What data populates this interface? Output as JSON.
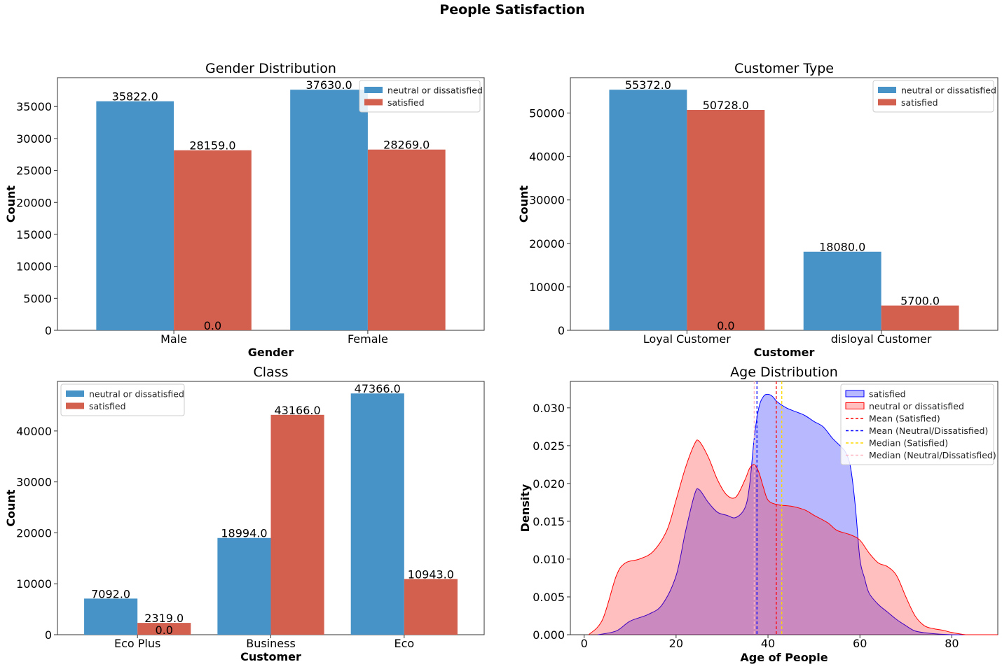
{
  "title": "People Satisfaction",
  "colors": {
    "blue": "#4793C7",
    "red": "#D35F4F",
    "kde_blue": "#0000FF",
    "kde_red": "#FF0000"
  },
  "chart_data": [
    {
      "type": "bar",
      "title": "Gender Distribution",
      "xlabel": "Gender",
      "ylabel": "Count",
      "categories": [
        "Male",
        "Female"
      ],
      "series": [
        {
          "name": "neutral or dissatisfied",
          "values": [
            35822,
            37630
          ]
        },
        {
          "name": "satisfied",
          "values": [
            28159,
            28269
          ]
        }
      ],
      "ylim": [
        0,
        37630
      ],
      "yticks": [
        0,
        5000,
        10000,
        15000,
        20000,
        25000,
        30000,
        35000
      ],
      "bar_labels": [
        "35822.0",
        "37630.0",
        "28159.0",
        "28269.0",
        "0.0"
      ],
      "legend_loc": "upper right"
    },
    {
      "type": "bar",
      "title": "Customer Type",
      "xlabel": "Customer",
      "ylabel": "Count",
      "categories": [
        "Loyal Customer",
        "disloyal Customer"
      ],
      "series": [
        {
          "name": "neutral or dissatisfied",
          "values": [
            55372,
            18080
          ]
        },
        {
          "name": "satisfied",
          "values": [
            50728,
            5700
          ]
        }
      ],
      "ylim": [
        0,
        55372
      ],
      "yticks": [
        0,
        10000,
        20000,
        30000,
        40000,
        50000
      ],
      "bar_labels": [
        "55372.0",
        "18080.0",
        "50728.0",
        "5700.0",
        "0.0"
      ],
      "legend_loc": "upper right"
    },
    {
      "type": "bar",
      "title": "Class",
      "xlabel": "Customer",
      "ylabel": "Count",
      "categories": [
        "Eco Plus",
        "Business",
        "Eco"
      ],
      "series": [
        {
          "name": "neutral or dissatisfied",
          "values": [
            7092,
            18994,
            47366
          ]
        },
        {
          "name": "satisfied",
          "values": [
            2319,
            43166,
            10943
          ]
        }
      ],
      "ylim": [
        0,
        47366
      ],
      "yticks": [
        0,
        10000,
        20000,
        30000,
        40000
      ],
      "bar_labels": [
        "7092.0",
        "18994.0",
        "47366.0",
        "2319.0",
        "43166.0",
        "10943.0",
        "0.0"
      ],
      "legend_loc": "upper left"
    },
    {
      "type": "area",
      "title": "Age Distribution",
      "xlabel": "Age of People",
      "ylabel": "Density",
      "xlim": [
        -3,
        90
      ],
      "ylim": [
        0,
        0.0335
      ],
      "xticks": [
        0,
        20,
        40,
        60,
        80
      ],
      "yticks": [
        0,
        0.005,
        0.01,
        0.015,
        0.02,
        0.025,
        0.03
      ],
      "ytick_labels": [
        "0.000",
        "0.005",
        "0.010",
        "0.015",
        "0.020",
        "0.025",
        "0.030"
      ],
      "series": [
        {
          "name": "satisfied",
          "x": [
            3,
            7,
            10,
            14,
            17,
            20,
            22,
            24,
            25,
            27,
            29,
            31,
            33,
            35,
            36,
            37,
            38,
            39,
            40,
            41,
            42,
            44,
            46,
            48,
            50,
            52,
            54,
            56,
            57,
            58,
            59,
            60,
            61,
            62,
            64,
            66,
            68,
            70,
            72,
            75,
            80,
            85,
            90
          ],
          "y": [
            0,
            0.0005,
            0.0018,
            0.0027,
            0.004,
            0.0078,
            0.0135,
            0.0185,
            0.0192,
            0.0175,
            0.0162,
            0.0158,
            0.0155,
            0.0168,
            0.0198,
            0.026,
            0.03,
            0.0315,
            0.0318,
            0.0315,
            0.0308,
            0.03,
            0.0295,
            0.029,
            0.0282,
            0.0275,
            0.026,
            0.0248,
            0.024,
            0.022,
            0.017,
            0.01,
            0.0075,
            0.0055,
            0.004,
            0.003,
            0.002,
            0.0012,
            0.0005,
            0.0002,
            0,
            0,
            0
          ]
        },
        {
          "name": "neutral or dissatisfied",
          "x": [
            1,
            4,
            7,
            9,
            12,
            15,
            18,
            20,
            22,
            24,
            25,
            27,
            29,
            31,
            33,
            35,
            36,
            37,
            38,
            39,
            40,
            42,
            45,
            48,
            50,
            53,
            55,
            58,
            60,
            62,
            64,
            66,
            68,
            70,
            72,
            74,
            76,
            78,
            80,
            83,
            86,
            90
          ],
          "y": [
            0,
            0.002,
            0.0078,
            0.0095,
            0.01,
            0.011,
            0.0138,
            0.0178,
            0.022,
            0.0252,
            0.0256,
            0.0235,
            0.0205,
            0.0185,
            0.0182,
            0.0205,
            0.022,
            0.0225,
            0.0215,
            0.0195,
            0.0178,
            0.0172,
            0.017,
            0.0165,
            0.0158,
            0.0148,
            0.0138,
            0.0132,
            0.0125,
            0.0108,
            0.0095,
            0.009,
            0.0078,
            0.005,
            0.0025,
            0.0012,
            0.0008,
            0.0006,
            0.0003,
            0,
            0,
            0
          ]
        }
      ],
      "lines": [
        {
          "name": "Mean (Satisfied)",
          "x": 41.8,
          "color": "#FF0000"
        },
        {
          "name": "Mean (Neutral/Dissatisfied)",
          "x": 37.6,
          "color": "#0000FF"
        },
        {
          "name": "Median (Satisfied)",
          "x": 43.0,
          "color": "#FFD700"
        },
        {
          "name": "Median (Neutral/Dissatisfied)",
          "x": 37.0,
          "color": "#FFB6C1"
        }
      ],
      "legend_loc": "upper right"
    }
  ]
}
